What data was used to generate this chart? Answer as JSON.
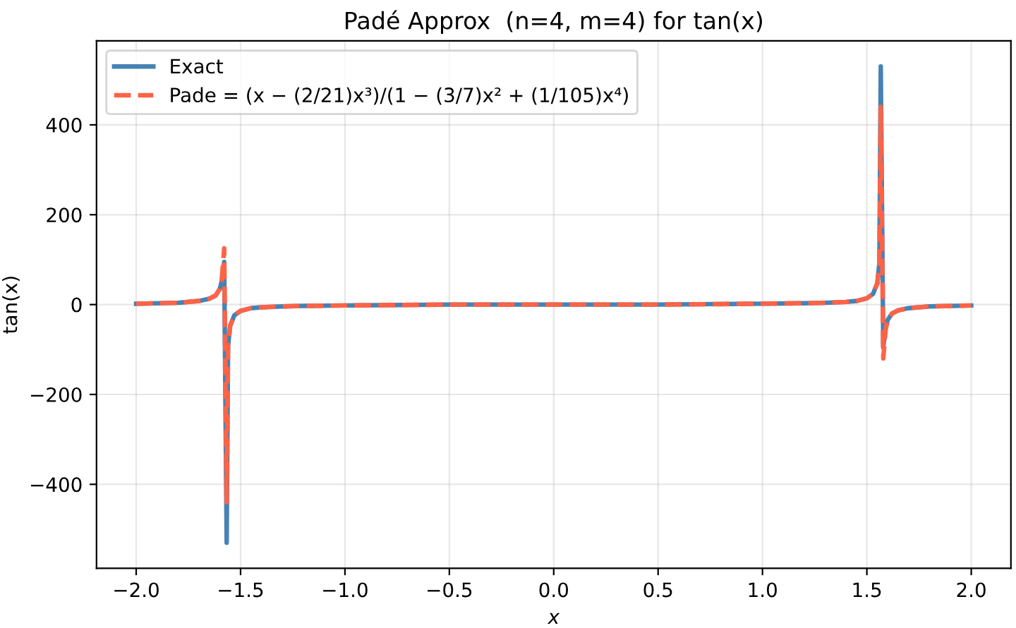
{
  "chart_data": {
    "type": "line",
    "title": "Padé Approx  (n=4, m=4) for tan(x)",
    "xlabel": "x",
    "ylabel": "tan(x)",
    "xlim": [
      -2.19,
      2.19
    ],
    "ylim": [
      -587,
      587
    ],
    "xticks": [
      {
        "value": -2,
        "label": "−2.0"
      },
      {
        "value": -1.5,
        "label": "−1.5"
      },
      {
        "value": -1,
        "label": "−1.0"
      },
      {
        "value": -0.5,
        "label": "−0.5"
      },
      {
        "value": 0,
        "label": "0.0"
      },
      {
        "value": 0.5,
        "label": "0.5"
      },
      {
        "value": 1,
        "label": "1.0"
      },
      {
        "value": 1.5,
        "label": "1.5"
      },
      {
        "value": 2,
        "label": "2.0"
      }
    ],
    "yticks": [
      {
        "value": -400,
        "label": "−400"
      },
      {
        "value": -200,
        "label": "−200"
      },
      0,
      200,
      400
    ],
    "grid": true,
    "legend": "top left",
    "marker": "none",
    "series": [
      {
        "name": "Exact",
        "color": "#4682b4",
        "line_style": "solid",
        "x": [
          -2.0,
          -1.8,
          -1.7,
          -1.65,
          -1.62,
          -1.6,
          -1.59,
          -1.5785,
          -1.5665,
          -1.56,
          -1.55,
          -1.53,
          -1.5,
          -1.45,
          -1.4,
          -1.3,
          -1.2,
          -1.0,
          -0.5,
          0.0,
          0.5,
          1.0,
          1.2,
          1.3,
          1.4,
          1.45,
          1.5,
          1.53,
          1.55,
          1.56,
          1.5665,
          1.5785,
          1.59,
          1.6,
          1.62,
          1.65,
          1.7,
          1.8,
          2.0
        ],
        "values": [
          2,
          4,
          8,
          13,
          20,
          34,
          52,
          95,
          -530,
          -93,
          -48,
          -24,
          -14,
          -8,
          -6,
          -4,
          -3,
          -2,
          0,
          0,
          0,
          2,
          3,
          4,
          6,
          8,
          14,
          24,
          48,
          93,
          530,
          -95,
          -52,
          -34,
          -20,
          -13,
          -8,
          -4,
          -2
        ]
      },
      {
        "name": "Pade = (x − (2/21)x³)/(1 − (3/7)x² + (1/105)x⁴)",
        "color": "#ff6347",
        "line_style": "dashed",
        "x": [
          -2.0,
          -1.8,
          -1.7,
          -1.65,
          -1.62,
          -1.6,
          -1.59,
          -1.5785,
          -1.5665,
          -1.56,
          -1.55,
          -1.53,
          -1.5,
          -1.45,
          -1.4,
          -1.3,
          -1.2,
          -1.0,
          -0.5,
          0.0,
          0.5,
          1.0,
          1.2,
          1.3,
          1.4,
          1.45,
          1.5,
          1.53,
          1.55,
          1.56,
          1.5665,
          1.5785,
          1.59,
          1.6,
          1.62,
          1.65,
          1.7,
          1.8,
          2.0
        ],
        "values": [
          2,
          4,
          8,
          13,
          20,
          35,
          55,
          125,
          -440,
          -90,
          -47,
          -24,
          -14,
          -8,
          -6,
          -4,
          -3,
          -2,
          0,
          0,
          0,
          2,
          3,
          4,
          6,
          8,
          14,
          24,
          47,
          90,
          440,
          -120,
          -55,
          -35,
          -20,
          -13,
          -8,
          -4,
          -2
        ]
      }
    ]
  }
}
